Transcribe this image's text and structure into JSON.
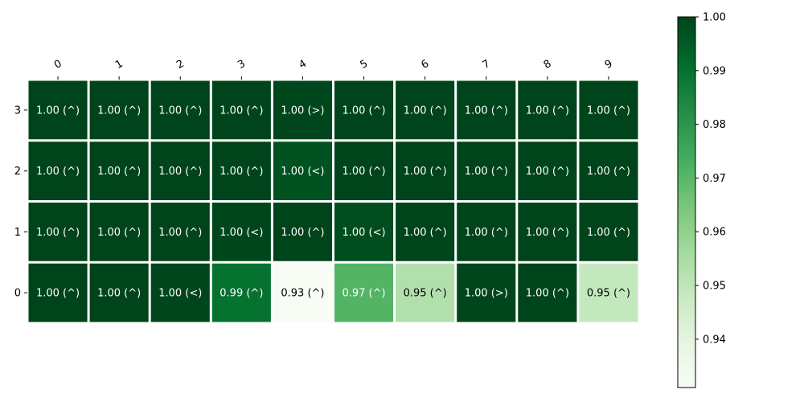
{
  "chart_data": {
    "type": "heatmap",
    "title": "",
    "xlabel": "",
    "ylabel": "",
    "x_categories": [
      "0",
      "1",
      "2",
      "3",
      "4",
      "5",
      "6",
      "7",
      "8",
      "9"
    ],
    "y_categories": [
      "3",
      "2",
      "1",
      "0"
    ],
    "colormap": "Greens",
    "color_low": "#f7fcf5",
    "color_high": "#00441b",
    "colorbar": {
      "vmin": 0.931,
      "vmax": 1.0,
      "ticks": [
        0.94,
        0.95,
        0.96,
        0.97,
        0.98,
        0.99,
        1.0
      ],
      "tick_labels": [
        "0.94",
        "0.95",
        "0.96",
        "0.97",
        "0.98",
        "0.99",
        "1.00"
      ]
    },
    "rows": [
      {
        "y": "3",
        "values": [
          1.0,
          1.0,
          1.0,
          1.0,
          0.9995,
          1.0,
          1.0,
          1.0,
          1.0,
          1.0
        ],
        "labels": [
          "1.00 (^)",
          "1.00 (^)",
          "1.00 (^)",
          "1.00 (^)",
          "1.00 (>)",
          "1.00 (^)",
          "1.00 (^)",
          "1.00 (^)",
          "1.00 (^)",
          "1.00 (^)"
        ]
      },
      {
        "y": "2",
        "values": [
          1.0,
          1.0,
          1.0,
          1.0,
          0.997,
          1.0,
          1.0,
          1.0,
          1.0,
          1.0
        ],
        "labels": [
          "1.00 (^)",
          "1.00 (^)",
          "1.00 (^)",
          "1.00 (^)",
          "1.00 (<)",
          "1.00 (^)",
          "1.00 (^)",
          "1.00 (^)",
          "1.00 (^)",
          "1.00 (^)"
        ]
      },
      {
        "y": "1",
        "values": [
          1.0,
          1.0,
          1.0,
          0.9995,
          1.0,
          0.998,
          1.0,
          1.0,
          1.0,
          1.0
        ],
        "labels": [
          "1.00 (^)",
          "1.00 (^)",
          "1.00 (^)",
          "1.00 (<)",
          "1.00 (^)",
          "1.00 (<)",
          "1.00 (^)",
          "1.00 (^)",
          "1.00 (^)",
          "1.00 (^)"
        ]
      },
      {
        "y": "0",
        "values": [
          1.0,
          1.0,
          0.9995,
          0.99,
          0.931,
          0.971,
          0.953,
          0.9995,
          1.0,
          0.949
        ],
        "labels": [
          "1.00 (^)",
          "1.00 (^)",
          "1.00 (<)",
          "0.99 (^)",
          "0.93 (^)",
          "0.97 (^)",
          "0.95 (^)",
          "1.00 (>)",
          "1.00 (^)",
          "0.95 (^)"
        ]
      }
    ]
  }
}
